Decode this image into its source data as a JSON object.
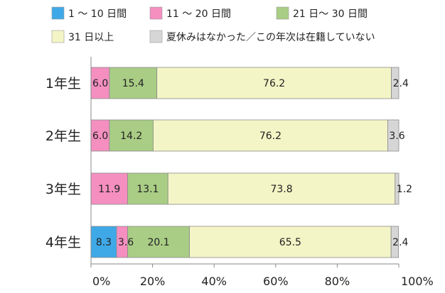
{
  "chart_data": {
    "type": "bar",
    "orientation": "horizontal",
    "stacked": true,
    "title": "",
    "xlabel": "",
    "ylabel": "",
    "xlim": [
      0,
      100
    ],
    "x_ticks": [
      "0%",
      "20%",
      "40%",
      "60%",
      "80%",
      "100%"
    ],
    "grid": false,
    "legend_position": "top",
    "categories": [
      "1年生",
      "2年生",
      "3年生",
      "4年生"
    ],
    "series": [
      {
        "name": "1 〜 10 日間",
        "color": "#3fa9e8",
        "values": [
          0,
          0,
          0,
          8.3
        ],
        "labels": [
          "",
          "",
          "",
          "8.3"
        ]
      },
      {
        "name": "11 〜 20 日間",
        "color": "#f48fc0",
        "values": [
          6.0,
          6.0,
          11.9,
          3.6
        ],
        "labels": [
          "6.0",
          "6.0",
          "11.9",
          "3.6"
        ]
      },
      {
        "name": "21 日〜 30 日間",
        "color": "#a9cd85",
        "values": [
          15.4,
          14.2,
          13.1,
          20.1
        ],
        "labels": [
          "15.4",
          "14.2",
          "13.1",
          "20.1"
        ]
      },
      {
        "name": "31 日以上",
        "color": "#f4f5c6",
        "values": [
          76.2,
          76.2,
          73.8,
          65.5
        ],
        "labels": [
          "76.2",
          "76.2",
          "73.8",
          "65.5"
        ]
      },
      {
        "name": "夏休みはなかった／この年次は在籍していない",
        "color": "#d6d6d6",
        "values": [
          2.4,
          3.6,
          1.2,
          2.4
        ],
        "labels": [
          "2.4",
          "3.6",
          "1.2",
          "2.4"
        ]
      }
    ]
  }
}
